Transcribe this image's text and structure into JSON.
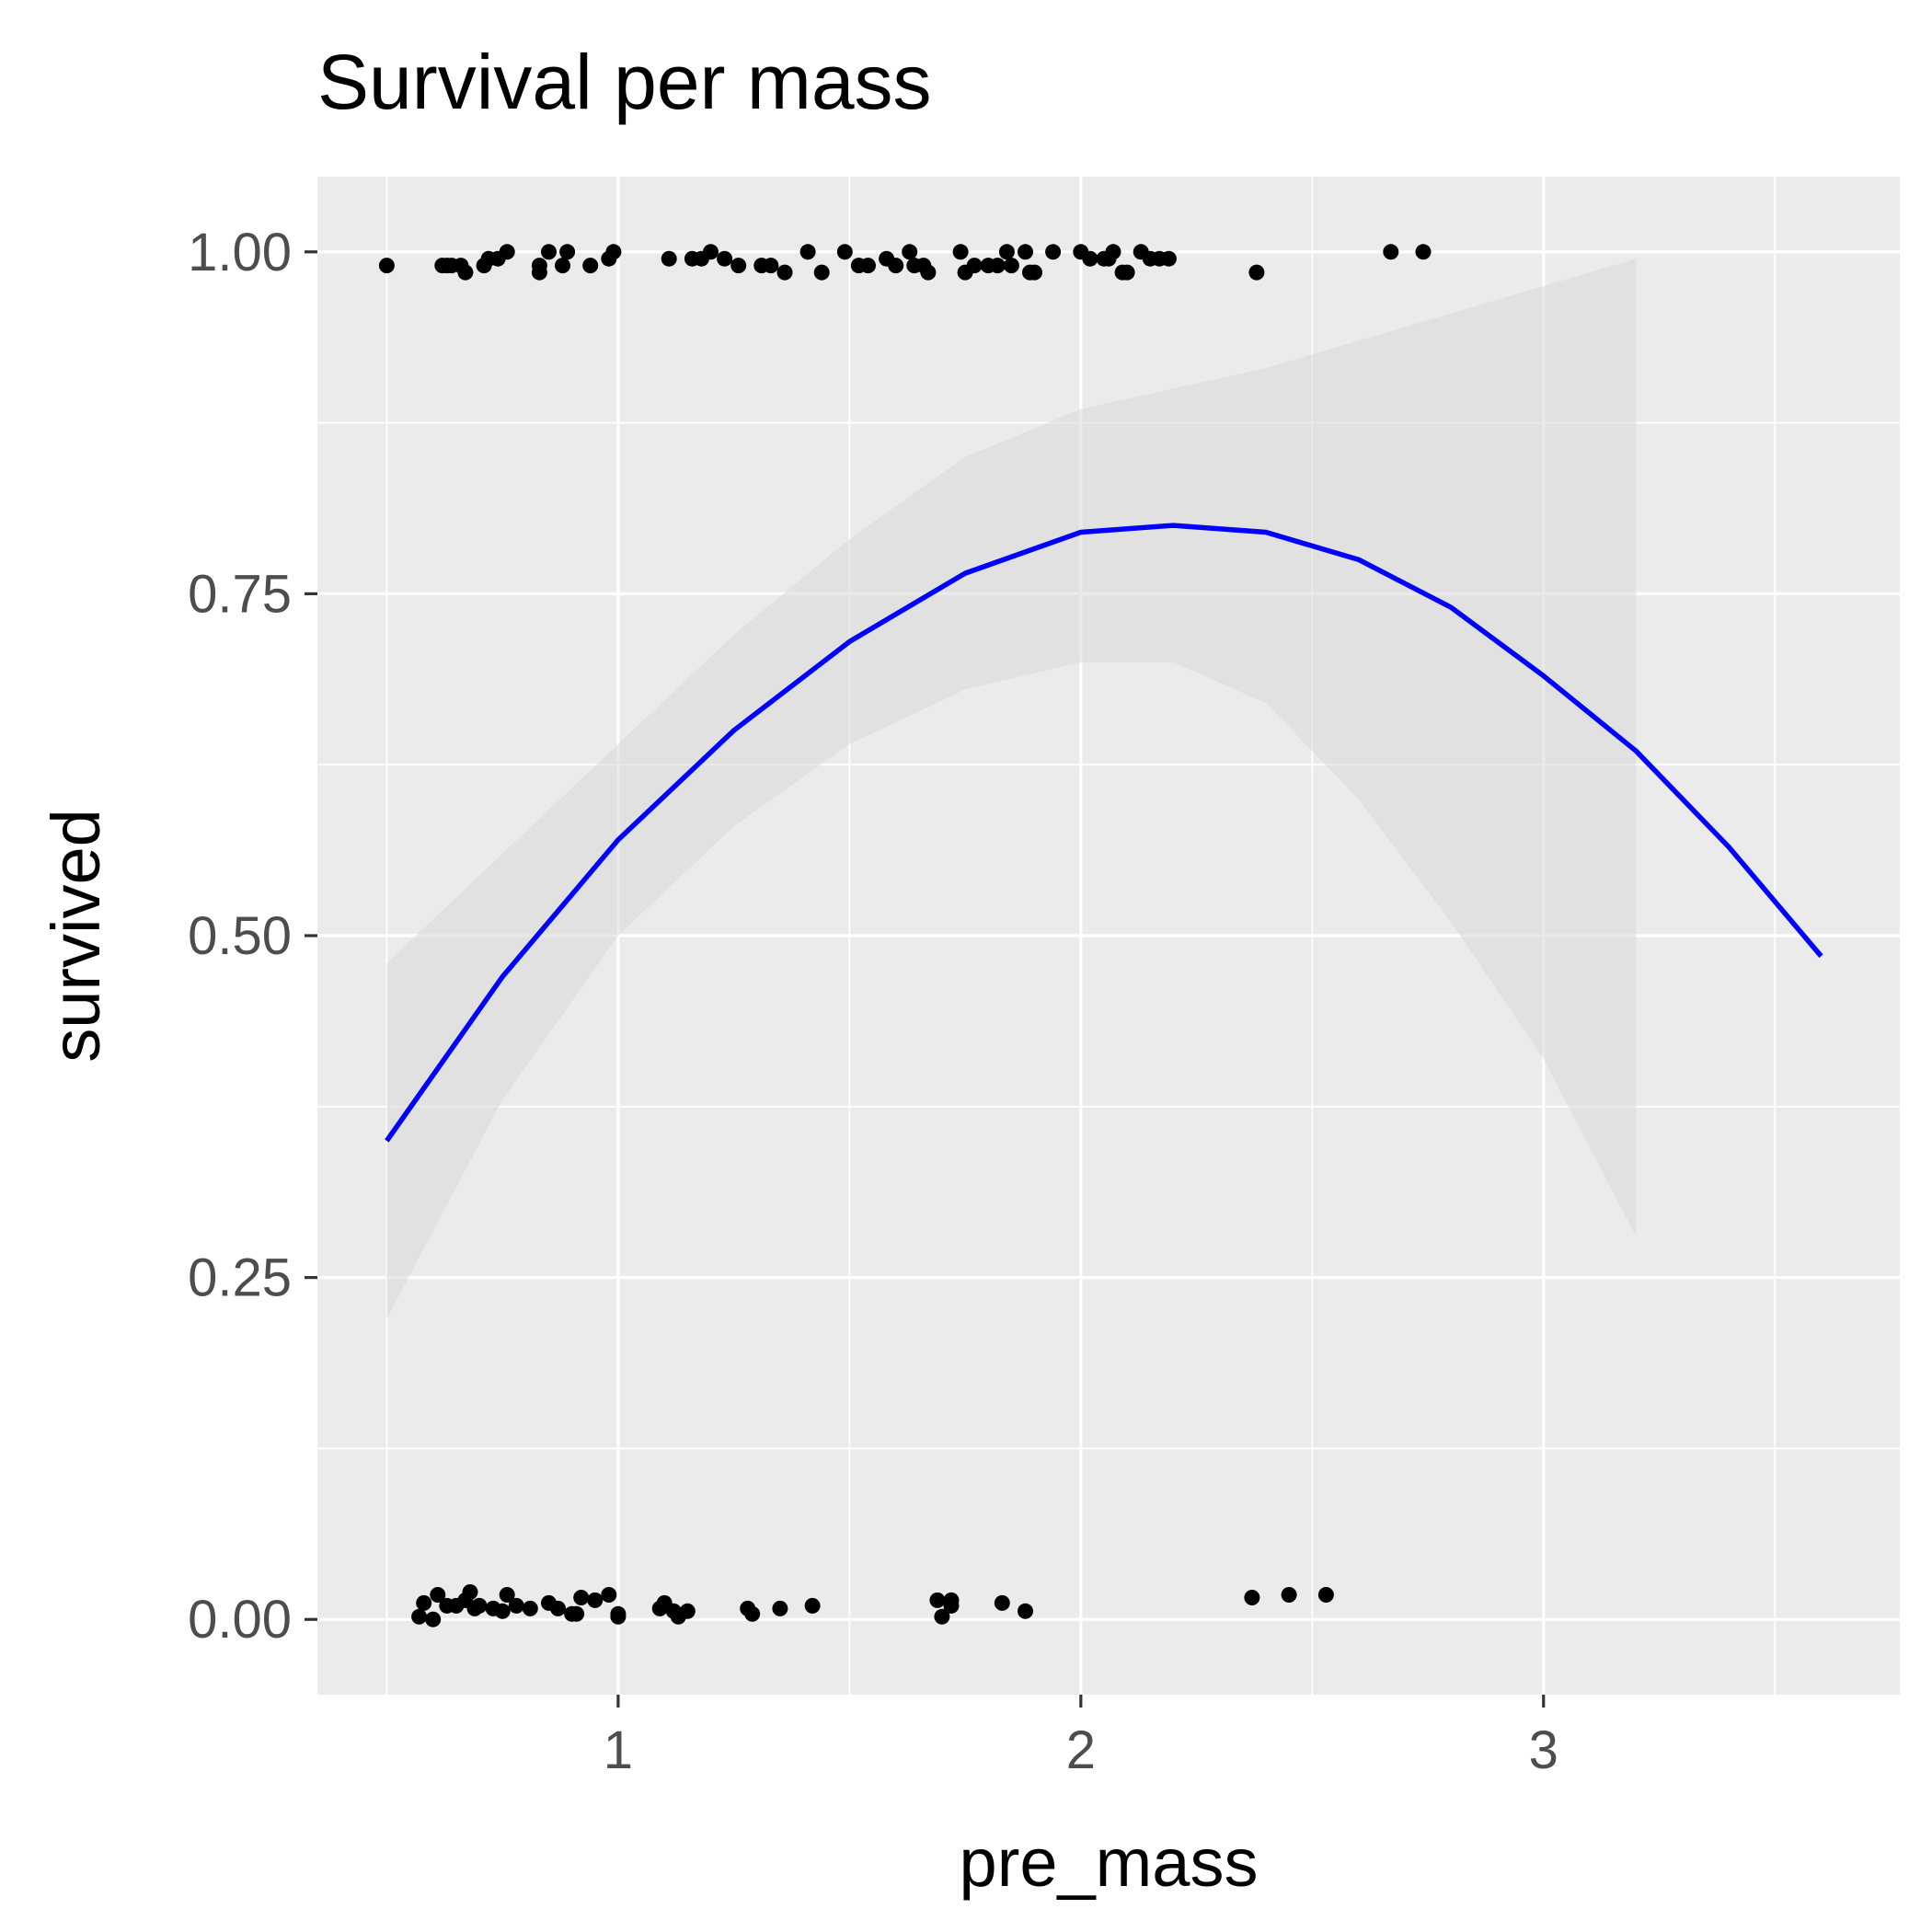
{
  "chart_data": {
    "type": "scatter",
    "title": "Survival per mass",
    "xlabel": "pre_mass",
    "ylabel": "survived",
    "xlim": [
      0.35,
      3.77
    ],
    "ylim": [
      -0.055,
      1.055
    ],
    "x_ticks": [
      1,
      2,
      3
    ],
    "x_tick_labels": [
      "1",
      "2",
      "3"
    ],
    "y_ticks": [
      0,
      0.25,
      0.5,
      0.75,
      1
    ],
    "y_tick_labels": [
      "0.00",
      "0.25",
      "0.50",
      "0.75",
      "1.00"
    ],
    "grid": true,
    "background_color": "#ebebeb",
    "grid_color": "#ffffff",
    "point_color": "#000000",
    "line_color": "#0000ff",
    "ribbon_color": "#d9d9d9",
    "points": [
      [
        0.5,
        0.99
      ],
      [
        0.62,
        0.99
      ],
      [
        0.63,
        0.99
      ],
      [
        0.64,
        0.99
      ],
      [
        0.66,
        0.99
      ],
      [
        0.67,
        0.985
      ],
      [
        0.71,
        0.99
      ],
      [
        0.72,
        0.995
      ],
      [
        0.74,
        0.995
      ],
      [
        0.76,
        1.0
      ],
      [
        0.83,
        0.985
      ],
      [
        0.83,
        0.99
      ],
      [
        0.85,
        1.0
      ],
      [
        0.88,
        0.99
      ],
      [
        0.89,
        1.0
      ],
      [
        0.94,
        0.99
      ],
      [
        0.98,
        0.995
      ],
      [
        0.99,
        1.0
      ],
      [
        1.11,
        0.995
      ],
      [
        1.16,
        0.995
      ],
      [
        1.18,
        0.995
      ],
      [
        1.2,
        1.0
      ],
      [
        1.23,
        0.995
      ],
      [
        1.26,
        0.99
      ],
      [
        1.31,
        0.99
      ],
      [
        1.33,
        0.99
      ],
      [
        1.36,
        0.985
      ],
      [
        1.41,
        1.0
      ],
      [
        1.44,
        0.985
      ],
      [
        1.49,
        1.0
      ],
      [
        1.52,
        0.99
      ],
      [
        1.54,
        0.99
      ],
      [
        1.58,
        0.995
      ],
      [
        1.6,
        0.99
      ],
      [
        1.63,
        1.0
      ],
      [
        1.64,
        0.99
      ],
      [
        1.66,
        0.99
      ],
      [
        1.67,
        0.985
      ],
      [
        1.74,
        1.0
      ],
      [
        1.75,
        0.985
      ],
      [
        1.77,
        0.99
      ],
      [
        1.8,
        0.99
      ],
      [
        1.82,
        0.99
      ],
      [
        1.84,
        1.0
      ],
      [
        1.85,
        0.99
      ],
      [
        1.88,
        1.0
      ],
      [
        1.89,
        0.985
      ],
      [
        1.9,
        0.985
      ],
      [
        1.94,
        1.0
      ],
      [
        2.0,
        1.0
      ],
      [
        2.02,
        0.995
      ],
      [
        2.05,
        0.995
      ],
      [
        2.06,
        0.995
      ],
      [
        2.07,
        1.0
      ],
      [
        2.09,
        0.985
      ],
      [
        2.1,
        0.985
      ],
      [
        2.13,
        1.0
      ],
      [
        2.15,
        0.995
      ],
      [
        2.17,
        0.995
      ],
      [
        2.19,
        0.995
      ],
      [
        2.38,
        0.985
      ],
      [
        2.67,
        1.0
      ],
      [
        2.74,
        1.0
      ],
      [
        0.57,
        0.002
      ],
      [
        0.58,
        0.012
      ],
      [
        0.6,
        0.0
      ],
      [
        0.61,
        0.018
      ],
      [
        0.63,
        0.01
      ],
      [
        0.65,
        0.01
      ],
      [
        0.67,
        0.014
      ],
      [
        0.68,
        0.02
      ],
      [
        0.69,
        0.008
      ],
      [
        0.7,
        0.01
      ],
      [
        0.73,
        0.008
      ],
      [
        0.75,
        0.006
      ],
      [
        0.76,
        0.018
      ],
      [
        0.78,
        0.01
      ],
      [
        0.81,
        0.008
      ],
      [
        0.85,
        0.012
      ],
      [
        0.87,
        0.008
      ],
      [
        0.9,
        0.004
      ],
      [
        0.91,
        0.004
      ],
      [
        0.92,
        0.016
      ],
      [
        0.95,
        0.014
      ],
      [
        0.98,
        0.018
      ],
      [
        1.0,
        0.004
      ],
      [
        1.0,
        0.002
      ],
      [
        1.09,
        0.008
      ],
      [
        1.1,
        0.012
      ],
      [
        1.12,
        0.006
      ],
      [
        1.13,
        0.002
      ],
      [
        1.15,
        0.006
      ],
      [
        1.28,
        0.008
      ],
      [
        1.29,
        0.004
      ],
      [
        1.35,
        0.008
      ],
      [
        1.42,
        0.01
      ],
      [
        1.69,
        0.014
      ],
      [
        1.7,
        0.002
      ],
      [
        1.72,
        0.01
      ],
      [
        1.72,
        0.014
      ],
      [
        1.83,
        0.012
      ],
      [
        1.88,
        0.006
      ],
      [
        2.37,
        0.016
      ],
      [
        2.45,
        0.018
      ],
      [
        2.53,
        0.018
      ]
    ],
    "fit_curve": {
      "x": [
        0.5,
        0.75,
        1.0,
        1.25,
        1.5,
        1.75,
        2.0,
        2.2,
        2.4,
        2.6,
        2.8,
        3.0,
        3.2,
        3.4,
        3.6
      ],
      "y": [
        0.35,
        0.47,
        0.57,
        0.65,
        0.715,
        0.765,
        0.795,
        0.8,
        0.795,
        0.775,
        0.74,
        0.69,
        0.635,
        0.565,
        0.485
      ]
    },
    "confidence_band": {
      "x": [
        0.5,
        0.75,
        1.0,
        1.25,
        1.5,
        1.75,
        2.0,
        2.2,
        2.4,
        2.6,
        2.8,
        3.0,
        3.2
      ],
      "upper": [
        0.48,
        0.56,
        0.64,
        0.72,
        0.79,
        0.85,
        0.885,
        0.9,
        0.915,
        0.935,
        0.955,
        0.975,
        0.995
      ],
      "lower": [
        0.22,
        0.38,
        0.5,
        0.58,
        0.64,
        0.68,
        0.7,
        0.7,
        0.67,
        0.6,
        0.51,
        0.41,
        0.28
      ]
    }
  }
}
